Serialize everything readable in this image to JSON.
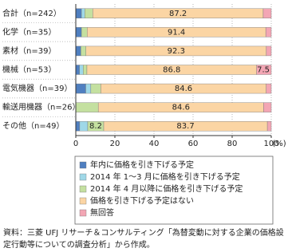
{
  "chart_data": {
    "type": "stacked-barh",
    "categories": [
      "合計（n=242）",
      "化学（n=35）",
      "素材（n=39）",
      "機械（n=53）",
      "電気機器（n=39）",
      "輸送用機器（n=26）",
      "その他（n=49）"
    ],
    "series": [
      {
        "name": "年内に価格を引き下げる予定",
        "color": "#4f7fc0",
        "values": [
          2.9,
          2.9,
          2.6,
          1.9,
          5.1,
          0,
          2.0
        ],
        "value_labels": [
          null,
          null,
          null,
          null,
          null,
          null,
          null
        ]
      },
      {
        "name": "2014 年 1～3 月に価格を引き下げる予定",
        "color": "#9fd8e8",
        "values": [
          1.7,
          0,
          0,
          1.9,
          2.6,
          0,
          4.1
        ],
        "value_labels": [
          null,
          null,
          null,
          null,
          null,
          null,
          null
        ]
      },
      {
        "name": "2014 年 4 月以降に価格を引き下げる予定",
        "color": "#c4e0a0",
        "values": [
          4.1,
          2.9,
          2.6,
          1.9,
          5.1,
          11.5,
          8.2
        ],
        "value_labels": [
          null,
          null,
          null,
          null,
          null,
          null,
          "8.2"
        ]
      },
      {
        "name": "価格を引き下げる予定はない",
        "color": "#fbd5a4",
        "values": [
          87.2,
          91.4,
          92.3,
          86.8,
          84.6,
          84.6,
          83.7
        ],
        "value_labels": [
          "87.2",
          "91.4",
          "92.3",
          "86.8",
          "84.6",
          "84.6",
          "83.7"
        ]
      },
      {
        "name": "無回答",
        "color": "#f3a6b4",
        "values": [
          4.1,
          2.8,
          2.5,
          7.5,
          2.6,
          3.9,
          2.0
        ],
        "value_labels": [
          null,
          null,
          null,
          "7.5",
          null,
          null,
          null
        ]
      }
    ],
    "xlim": [
      0,
      100
    ],
    "xticks": [
      0,
      20,
      40,
      60,
      80,
      100
    ],
    "x_unit": "(%)",
    "grid": true,
    "note": "資料：三菱 UFJ リサーチ＆コンサルティング「為替変動に対する企業の価格設定行動等についての調査分析」から作成。"
  }
}
